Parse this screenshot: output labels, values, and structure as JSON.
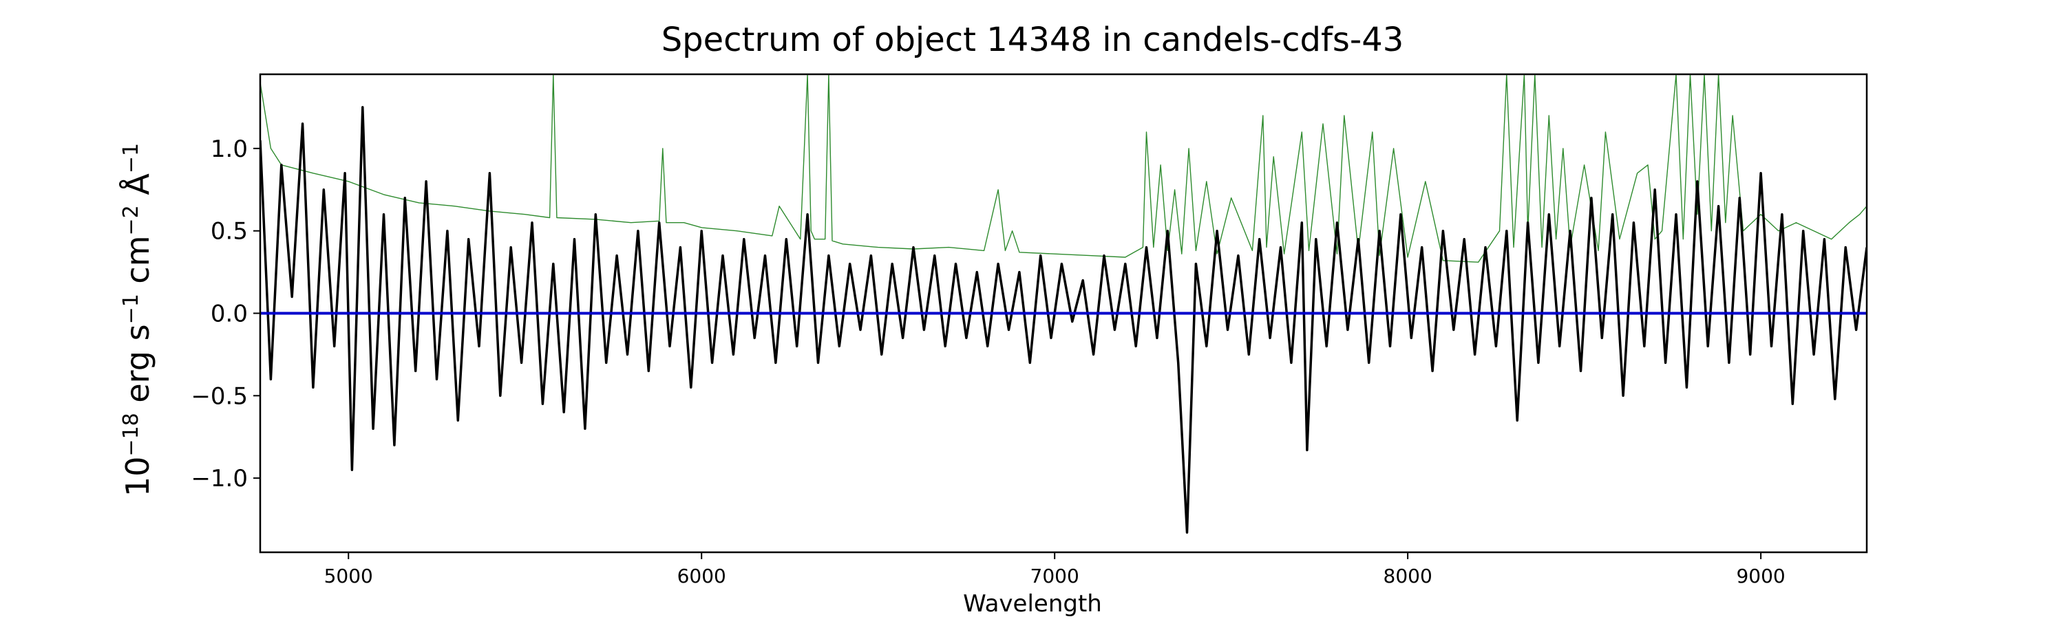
{
  "chart_data": {
    "type": "line",
    "title": "Spectrum of object 14348 in candels-cdfs-43",
    "xlabel": "Wavelength",
    "ylabel": {
      "base": "10",
      "exp1": "−18",
      "unit1": " erg s",
      "exp2": "−1",
      "unit2": " cm",
      "exp3": "−2",
      "unit3": " Å",
      "exp4": "−1"
    },
    "xlim": [
      4750,
      9300
    ],
    "ylim": [
      -1.45,
      1.45
    ],
    "xticks": [
      {
        "value": 5000,
        "label": "5000"
      },
      {
        "value": 6000,
        "label": "6000"
      },
      {
        "value": 7000,
        "label": "7000"
      },
      {
        "value": 8000,
        "label": "8000"
      },
      {
        "value": 9000,
        "label": "9000"
      }
    ],
    "yticks": [
      {
        "value": -1.0,
        "label": "−1.0"
      },
      {
        "value": -0.5,
        "label": "−0.5"
      },
      {
        "value": 0.0,
        "label": "0.0"
      },
      {
        "value": 0.5,
        "label": "0.5"
      },
      {
        "value": 1.0,
        "label": "1.0"
      }
    ],
    "grid": false,
    "series": [
      {
        "role": "flux",
        "color": "#000000",
        "x": [
          4750,
          4780,
          4810,
          4840,
          4870,
          4900,
          4930,
          4960,
          4990,
          5010,
          5040,
          5070,
          5100,
          5130,
          5160,
          5190,
          5220,
          5250,
          5280,
          5310,
          5340,
          5370,
          5400,
          5430,
          5460,
          5490,
          5520,
          5550,
          5580,
          5610,
          5640,
          5670,
          5700,
          5730,
          5760,
          5790,
          5820,
          5850,
          5880,
          5910,
          5940,
          5970,
          6000,
          6030,
          6060,
          6090,
          6120,
          6150,
          6180,
          6210,
          6240,
          6270,
          6300,
          6330,
          6360,
          6390,
          6420,
          6450,
          6480,
          6510,
          6540,
          6570,
          6600,
          6630,
          6660,
          6690,
          6720,
          6750,
          6780,
          6810,
          6840,
          6870,
          6900,
          6930,
          6960,
          6990,
          7020,
          7050,
          7080,
          7110,
          7140,
          7170,
          7200,
          7230,
          7260,
          7290,
          7320,
          7350,
          7375,
          7400,
          7430,
          7460,
          7490,
          7520,
          7550,
          7580,
          7610,
          7640,
          7670,
          7700,
          7715,
          7740,
          7770,
          7800,
          7830,
          7860,
          7890,
          7920,
          7950,
          7980,
          8010,
          8040,
          8070,
          8100,
          8130,
          8160,
          8190,
          8220,
          8250,
          8280,
          8310,
          8340,
          8370,
          8400,
          8430,
          8460,
          8490,
          8520,
          8550,
          8580,
          8610,
          8640,
          8670,
          8700,
          8730,
          8760,
          8790,
          8820,
          8850,
          8880,
          8910,
          8940,
          8970,
          9000,
          9030,
          9060,
          9090,
          9120,
          9150,
          9180,
          9210,
          9240,
          9270,
          9300
        ],
        "y": [
          1.05,
          -0.4,
          0.9,
          0.1,
          1.15,
          -0.45,
          0.75,
          -0.2,
          0.85,
          -0.95,
          1.25,
          -0.7,
          0.6,
          -0.8,
          0.7,
          -0.35,
          0.8,
          -0.4,
          0.5,
          -0.65,
          0.45,
          -0.2,
          0.85,
          -0.5,
          0.4,
          -0.3,
          0.55,
          -0.55,
          0.3,
          -0.6,
          0.45,
          -0.7,
          0.6,
          -0.3,
          0.35,
          -0.25,
          0.5,
          -0.35,
          0.55,
          -0.2,
          0.4,
          -0.45,
          0.5,
          -0.3,
          0.35,
          -0.25,
          0.45,
          -0.15,
          0.35,
          -0.3,
          0.45,
          -0.2,
          0.6,
          -0.3,
          0.35,
          -0.2,
          0.3,
          -0.1,
          0.35,
          -0.25,
          0.3,
          -0.15,
          0.4,
          -0.1,
          0.35,
          -0.2,
          0.3,
          -0.15,
          0.25,
          -0.2,
          0.3,
          -0.1,
          0.25,
          -0.3,
          0.35,
          -0.15,
          0.3,
          -0.05,
          0.2,
          -0.25,
          0.35,
          -0.1,
          0.3,
          -0.2,
          0.4,
          -0.15,
          0.5,
          -0.3,
          -1.33,
          0.3,
          -0.2,
          0.5,
          -0.1,
          0.35,
          -0.25,
          0.45,
          -0.15,
          0.4,
          -0.3,
          0.55,
          -0.83,
          0.45,
          -0.2,
          0.55,
          -0.1,
          0.45,
          -0.3,
          0.5,
          -0.2,
          0.6,
          -0.15,
          0.4,
          -0.35,
          0.5,
          -0.1,
          0.45,
          -0.25,
          0.4,
          -0.2,
          0.5,
          -0.65,
          0.55,
          -0.3,
          0.6,
          -0.2,
          0.5,
          -0.35,
          0.7,
          -0.15,
          0.6,
          -0.5,
          0.55,
          -0.2,
          0.75,
          -0.3,
          0.6,
          -0.45,
          0.8,
          -0.2,
          0.65,
          -0.3,
          0.7,
          -0.25,
          0.85,
          -0.2,
          0.6,
          -0.55,
          0.5,
          -0.25,
          0.45,
          -0.52,
          0.4,
          -0.1,
          0.4
        ]
      },
      {
        "role": "noise",
        "color": "#2e8b2e",
        "x": [
          4750,
          4780,
          4810,
          4900,
          5000,
          5100,
          5200,
          5300,
          5400,
          5500,
          5570,
          5580,
          5590,
          5700,
          5800,
          5880,
          5890,
          5900,
          5950,
          6000,
          6100,
          6200,
          6220,
          6280,
          6300,
          6310,
          6320,
          6350,
          6360,
          6370,
          6400,
          6500,
          6600,
          6700,
          6800,
          6840,
          6860,
          6880,
          6900,
          7000,
          7100,
          7200,
          7250,
          7260,
          7280,
          7300,
          7320,
          7340,
          7360,
          7380,
          7400,
          7430,
          7460,
          7500,
          7560,
          7590,
          7600,
          7620,
          7650,
          7700,
          7720,
          7760,
          7800,
          7820,
          7860,
          7900,
          7920,
          7960,
          8000,
          8050,
          8100,
          8200,
          8260,
          8280,
          8300,
          8330,
          8340,
          8360,
          8380,
          8400,
          8420,
          8440,
          8460,
          8500,
          8540,
          8560,
          8600,
          8650,
          8680,
          8700,
          8720,
          8760,
          8780,
          8800,
          8820,
          8840,
          8860,
          8880,
          8900,
          8920,
          8950,
          9000,
          9050,
          9100,
          9150,
          9200,
          9250,
          9280,
          9300
        ],
        "y": [
          1.4,
          1.0,
          0.9,
          0.85,
          0.8,
          0.72,
          0.67,
          0.65,
          0.62,
          0.6,
          0.58,
          1.45,
          0.58,
          0.57,
          0.55,
          0.56,
          1.0,
          0.55,
          0.55,
          0.52,
          0.5,
          0.47,
          0.65,
          0.45,
          1.45,
          0.5,
          0.45,
          0.45,
          1.45,
          0.44,
          0.42,
          0.4,
          0.39,
          0.4,
          0.38,
          0.75,
          0.38,
          0.5,
          0.37,
          0.36,
          0.35,
          0.34,
          0.4,
          1.1,
          0.4,
          0.9,
          0.38,
          0.75,
          0.36,
          1.0,
          0.38,
          0.8,
          0.36,
          0.7,
          0.38,
          1.2,
          0.4,
          0.95,
          0.36,
          1.1,
          0.38,
          1.15,
          0.36,
          1.2,
          0.38,
          1.1,
          0.35,
          1.0,
          0.34,
          0.8,
          0.32,
          0.31,
          0.5,
          1.45,
          0.4,
          1.45,
          0.5,
          1.45,
          0.4,
          1.2,
          0.45,
          1.0,
          0.4,
          0.9,
          0.38,
          1.1,
          0.45,
          0.85,
          0.9,
          0.45,
          0.5,
          1.45,
          0.45,
          1.45,
          0.6,
          1.45,
          0.5,
          1.45,
          0.55,
          1.2,
          0.5,
          0.6,
          0.5,
          0.55,
          0.5,
          0.45,
          0.55,
          0.6,
          0.65
        ]
      },
      {
        "role": "zero",
        "color": "#0000cc",
        "x": [
          4750,
          9300
        ],
        "y": [
          0,
          0
        ]
      }
    ]
  }
}
